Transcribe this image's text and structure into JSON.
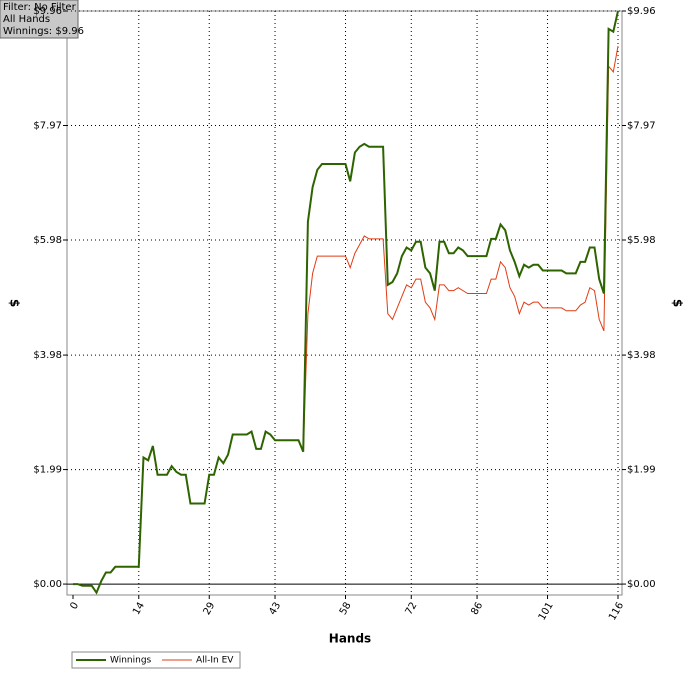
{
  "chart_data": {
    "type": "line",
    "annotations": [
      "Filter: No Filter",
      "All Hands",
      "Winnings: $9.96"
    ],
    "xlabel": "Hands",
    "ylabel": "$",
    "x": [
      0,
      1,
      2,
      3,
      4,
      5,
      6,
      7,
      8,
      9,
      10,
      11,
      12,
      13,
      14,
      15,
      16,
      17,
      18,
      19,
      20,
      21,
      22,
      23,
      24,
      25,
      26,
      27,
      28,
      29,
      30,
      31,
      32,
      33,
      34,
      35,
      36,
      37,
      38,
      39,
      40,
      41,
      42,
      43,
      44,
      45,
      46,
      47,
      48,
      49,
      50,
      51,
      52,
      53,
      54,
      55,
      56,
      57,
      58,
      59,
      60,
      61,
      62,
      63,
      64,
      65,
      66,
      67,
      68,
      69,
      70,
      71,
      72,
      73,
      74,
      75,
      76,
      77,
      78,
      79,
      80,
      81,
      82,
      83,
      84,
      85,
      86,
      87,
      88,
      89,
      90,
      91,
      92,
      93,
      94,
      95,
      96,
      97,
      98,
      99,
      100,
      101,
      102,
      103,
      104,
      105,
      106,
      107,
      108,
      109,
      110,
      111,
      112,
      113,
      114,
      115,
      116
    ],
    "series": [
      {
        "name": "Winnings",
        "color": "#2e6400",
        "values": [
          0,
          0,
          -0.03,
          -0.03,
          -0.03,
          -0.15,
          0.05,
          0.2,
          0.2,
          0.3,
          0.3,
          0.3,
          0.3,
          0.3,
          0.3,
          2.2,
          2.15,
          2.4,
          1.9,
          1.9,
          1.9,
          2.05,
          1.95,
          1.9,
          1.9,
          1.4,
          1.4,
          1.4,
          1.4,
          1.9,
          1.9,
          2.2,
          2.1,
          2.25,
          2.6,
          2.6,
          2.6,
          2.6,
          2.65,
          2.35,
          2.35,
          2.65,
          2.6,
          2.5,
          2.5,
          2.5,
          2.5,
          2.5,
          2.5,
          2.3,
          6.3,
          6.9,
          7.2,
          7.3,
          7.3,
          7.3,
          7.3,
          7.3,
          7.3,
          7.0,
          7.5,
          7.6,
          7.65,
          7.6,
          7.6,
          7.6,
          7.6,
          5.2,
          5.25,
          5.4,
          5.7,
          5.85,
          5.8,
          5.95,
          5.95,
          5.5,
          5.4,
          5.1,
          5.95,
          5.95,
          5.75,
          5.75,
          5.85,
          5.8,
          5.7,
          5.7,
          5.7,
          5.7,
          5.7,
          6.0,
          6.0,
          6.25,
          6.15,
          5.8,
          5.6,
          5.35,
          5.55,
          5.5,
          5.55,
          5.55,
          5.45,
          5.45,
          5.45,
          5.45,
          5.45,
          5.4,
          5.4,
          5.4,
          5.6,
          5.6,
          5.85,
          5.85,
          5.3,
          5.05,
          9.65,
          9.6,
          9.96
        ]
      },
      {
        "name": "All-In EV",
        "color": "#e03c14",
        "values": [
          0,
          0,
          -0.03,
          -0.03,
          -0.03,
          -0.15,
          0.05,
          0.2,
          0.2,
          0.3,
          0.3,
          0.3,
          0.3,
          0.3,
          0.3,
          2.2,
          2.15,
          2.4,
          1.9,
          1.9,
          1.9,
          2.05,
          1.95,
          1.9,
          1.9,
          1.4,
          1.4,
          1.4,
          1.4,
          1.9,
          1.9,
          2.2,
          2.1,
          2.25,
          2.6,
          2.6,
          2.6,
          2.6,
          2.65,
          2.35,
          2.35,
          2.65,
          2.6,
          2.5,
          2.5,
          2.5,
          2.5,
          2.5,
          2.5,
          2.3,
          4.7,
          5.4,
          5.7,
          5.7,
          5.7,
          5.7,
          5.7,
          5.7,
          5.7,
          5.5,
          5.75,
          5.9,
          6.05,
          6.0,
          6.0,
          6.0,
          6.0,
          4.7,
          4.6,
          4.8,
          5.0,
          5.2,
          5.15,
          5.3,
          5.3,
          4.9,
          4.8,
          4.6,
          5.2,
          5.2,
          5.1,
          5.1,
          5.15,
          5.1,
          5.05,
          5.05,
          5.05,
          5.05,
          5.05,
          5.3,
          5.3,
          5.6,
          5.5,
          5.15,
          5.0,
          4.7,
          4.9,
          4.85,
          4.9,
          4.9,
          4.8,
          4.8,
          4.8,
          4.8,
          4.8,
          4.75,
          4.75,
          4.75,
          4.85,
          4.9,
          5.15,
          5.1,
          4.6,
          4.4,
          9.0,
          8.9,
          9.35
        ]
      }
    ],
    "xlim": [
      0,
      116
    ],
    "xticks": [
      0,
      14,
      29,
      43,
      58,
      72,
      86,
      101,
      116
    ],
    "ylim": [
      -0.19,
      9.96
    ],
    "yticks": [
      {
        "value": 0,
        "label": "$0.00"
      },
      {
        "value": 1.99,
        "label": "$1.99"
      },
      {
        "value": 3.98,
        "label": "$3.98"
      },
      {
        "value": 5.98,
        "label": "$5.98"
      },
      {
        "value": 7.97,
        "label": "$7.97"
      },
      {
        "value": 9.96,
        "label": "$9.96"
      }
    ],
    "grid": true
  }
}
